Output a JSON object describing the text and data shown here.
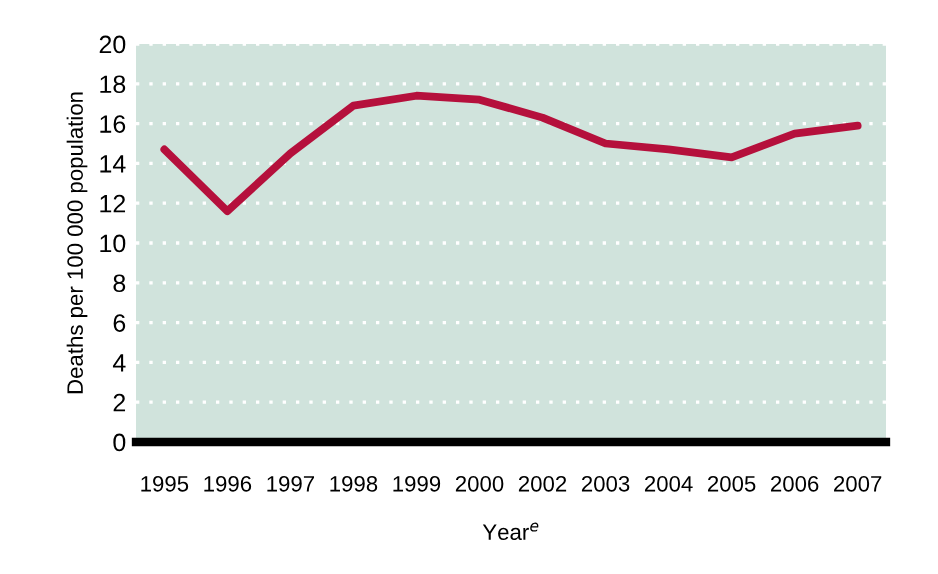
{
  "chart_data": {
    "type": "line",
    "xlabel": "Year$^{e}$",
    "ylabel": "Deaths per 100 000 population",
    "categories": [
      "1995",
      "1996",
      "1997",
      "1998",
      "1999",
      "2000",
      "2002",
      "2003",
      "2004",
      "2005",
      "2006",
      "2007"
    ],
    "series": [
      {
        "color": "#b5103c",
        "values": [
          14.7,
          11.6,
          14.5,
          16.9,
          17.4,
          17.2,
          16.3,
          15.0,
          14.7,
          14.3,
          15.5,
          15.9
        ]
      }
    ],
    "ylim": [
      0,
      20
    ],
    "yticks": [
      0,
      2,
      4,
      6,
      8,
      10,
      12,
      14,
      16,
      18,
      20
    ],
    "grid": "y",
    "line_style": "solid",
    "marker": "none"
  }
}
